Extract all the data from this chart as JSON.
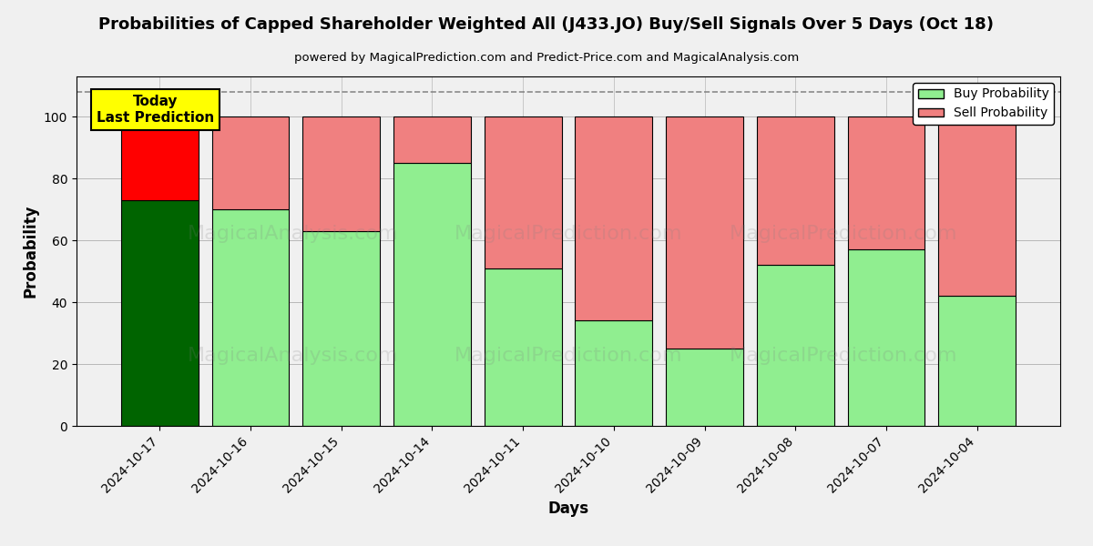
{
  "title": "Probabilities of Capped Shareholder Weighted All (J433.JO) Buy/Sell Signals Over 5 Days (Oct 18)",
  "subtitle": "powered by MagicalPrediction.com and Predict-Price.com and MagicalAnalysis.com",
  "xlabel": "Days",
  "ylabel": "Probability",
  "categories": [
    "2024-10-17",
    "2024-10-16",
    "2024-10-15",
    "2024-10-14",
    "2024-10-11",
    "2024-10-10",
    "2024-10-09",
    "2024-10-08",
    "2024-10-07",
    "2024-10-04"
  ],
  "buy_values": [
    73,
    70,
    63,
    85,
    51,
    34,
    25,
    52,
    57,
    42
  ],
  "sell_values": [
    27,
    30,
    37,
    15,
    49,
    66,
    75,
    48,
    43,
    58
  ],
  "today_buy_color": "#006400",
  "today_sell_color": "#FF0000",
  "regular_buy_color": "#90EE90",
  "regular_sell_color": "#F08080",
  "bar_edge_color": "black",
  "bar_edge_width": 0.8,
  "today_annotation_bg": "#FFFF00",
  "today_annotation_text": "Today\nLast Prediction",
  "watermark_lines": [
    "MagicalAnalysis.com",
    "MagicalPrediction.com"
  ],
  "ylim": [
    0,
    113
  ],
  "yticks": [
    0,
    20,
    40,
    60,
    80,
    100
  ],
  "dashed_line_y": 108,
  "legend_labels": [
    "Buy Probability",
    "Sell Probability"
  ],
  "legend_colors": [
    "#90EE90",
    "#F08080"
  ],
  "bg_color": "#f0f0f0",
  "figsize": [
    12,
    6
  ],
  "dpi": 100,
  "bar_width": 0.85
}
